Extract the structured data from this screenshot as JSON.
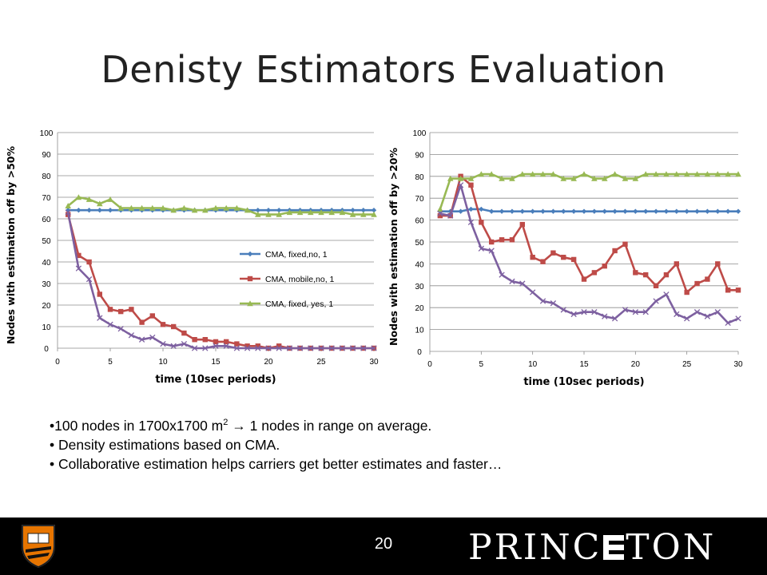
{
  "slide": {
    "title": "Denisty Estimators Evaluation",
    "bullets": [
      {
        "prefix": "•100 nodes in 1700x1700 m",
        "sup": "2",
        "suffix": " → 1 nodes in range on average."
      },
      {
        "prefix": "• Density estimations based on CMA.",
        "sup": "",
        "suffix": ""
      },
      {
        "prefix": "• Collaborative estimation helps carriers get better estimates and faster…",
        "sup": "",
        "suffix": ""
      }
    ],
    "page_number": "20",
    "logo_text": "PRINCETON"
  },
  "colors": {
    "blue": "#4a7ebb",
    "red": "#be4b48",
    "green": "#98b954",
    "purple": "#7d60a0",
    "grid": "#8c8c8c"
  },
  "chart_data": [
    {
      "type": "line",
      "xlabel": "time (10sec periods)",
      "ylabel": "Nodes with estimation off by >50%",
      "xlim": [
        0,
        30
      ],
      "ylim": [
        0,
        100
      ],
      "xticks": [
        0,
        5,
        10,
        15,
        20,
        25,
        30
      ],
      "yticks": [
        0,
        10,
        20,
        30,
        40,
        50,
        60,
        70,
        80,
        90,
        100
      ],
      "grid": "horizontal",
      "legend_position": "right",
      "x": [
        1,
        2,
        3,
        4,
        5,
        6,
        7,
        8,
        9,
        10,
        11,
        12,
        13,
        14,
        15,
        16,
        17,
        18,
        19,
        20,
        21,
        22,
        23,
        24,
        25,
        26,
        27,
        28,
        29,
        30
      ],
      "series": [
        {
          "name": "CMA, fixed,no, 1",
          "color": "blue",
          "marker": "diamond",
          "values": [
            64,
            64,
            64,
            64,
            64,
            64,
            64,
            64,
            64,
            64,
            64,
            64,
            64,
            64,
            64,
            64,
            64,
            64,
            64,
            64,
            64,
            64,
            64,
            64,
            64,
            64,
            64,
            64,
            64,
            64
          ]
        },
        {
          "name": "CMA, mobile,no, 1",
          "color": "red",
          "marker": "square",
          "values": [
            62,
            43,
            40,
            25,
            18,
            17,
            18,
            12,
            15,
            11,
            10,
            7,
            4,
            4,
            3,
            3,
            2,
            1,
            1,
            0,
            1,
            0,
            0,
            0,
            0,
            0,
            0,
            0,
            0,
            0
          ]
        },
        {
          "name": "CMA, fixed, yes, 1",
          "color": "green",
          "marker": "triangle",
          "values": [
            66,
            70,
            69,
            67,
            69,
            65,
            65,
            65,
            65,
            65,
            64,
            65,
            64,
            64,
            65,
            65,
            65,
            64,
            62,
            62,
            62,
            63,
            63,
            63,
            63,
            63,
            63,
            62,
            62,
            62
          ]
        },
        {
          "name": "",
          "color": "purple",
          "marker": "x",
          "values": [
            63,
            37,
            32,
            14,
            11,
            9,
            6,
            4,
            5,
            2,
            1,
            2,
            0,
            0,
            1,
            1,
            0,
            0,
            0,
            0,
            0,
            0,
            0,
            0,
            0,
            0,
            0,
            0,
            0,
            0
          ]
        }
      ]
    },
    {
      "type": "line",
      "xlabel": "time (10sec periods)",
      "ylabel": "Nodes with estimation off by >20%",
      "xlim": [
        0,
        30
      ],
      "ylim": [
        0,
        100
      ],
      "xticks": [
        0,
        5,
        10,
        15,
        20,
        25,
        30
      ],
      "yticks": [
        0,
        10,
        20,
        30,
        40,
        50,
        60,
        70,
        80,
        90,
        100
      ],
      "grid": "horizontal",
      "legend_position": "none",
      "x": [
        1,
        2,
        3,
        4,
        5,
        6,
        7,
        8,
        9,
        10,
        11,
        12,
        13,
        14,
        15,
        16,
        17,
        18,
        19,
        20,
        21,
        22,
        23,
        24,
        25,
        26,
        27,
        28,
        29,
        30
      ],
      "series": [
        {
          "name": "",
          "color": "blue",
          "marker": "diamond",
          "values": [
            64,
            64,
            64,
            65,
            65,
            64,
            64,
            64,
            64,
            64,
            64,
            64,
            64,
            64,
            64,
            64,
            64,
            64,
            64,
            64,
            64,
            64,
            64,
            64,
            64,
            64,
            64,
            64,
            64,
            64
          ]
        },
        {
          "name": "",
          "color": "red",
          "marker": "square",
          "values": [
            62,
            62,
            80,
            76,
            59,
            50,
            51,
            51,
            58,
            43,
            41,
            45,
            43,
            42,
            33,
            36,
            39,
            46,
            49,
            36,
            35,
            30,
            35,
            40,
            27,
            31,
            33,
            40,
            28,
            28
          ]
        },
        {
          "name": "",
          "color": "green",
          "marker": "triangle",
          "values": [
            65,
            79,
            79,
            79,
            81,
            81,
            79,
            79,
            81,
            81,
            81,
            81,
            79,
            79,
            81,
            79,
            79,
            81,
            79,
            79,
            81,
            81,
            81,
            81,
            81,
            81,
            81,
            81,
            81,
            81
          ]
        },
        {
          "name": "",
          "color": "purple",
          "marker": "x",
          "values": [
            63,
            62,
            76,
            59,
            47,
            46,
            35,
            32,
            31,
            27,
            23,
            22,
            19,
            17,
            18,
            18,
            16,
            15,
            19,
            18,
            18,
            23,
            26,
            17,
            15,
            18,
            16,
            18,
            13,
            15
          ]
        }
      ]
    }
  ]
}
